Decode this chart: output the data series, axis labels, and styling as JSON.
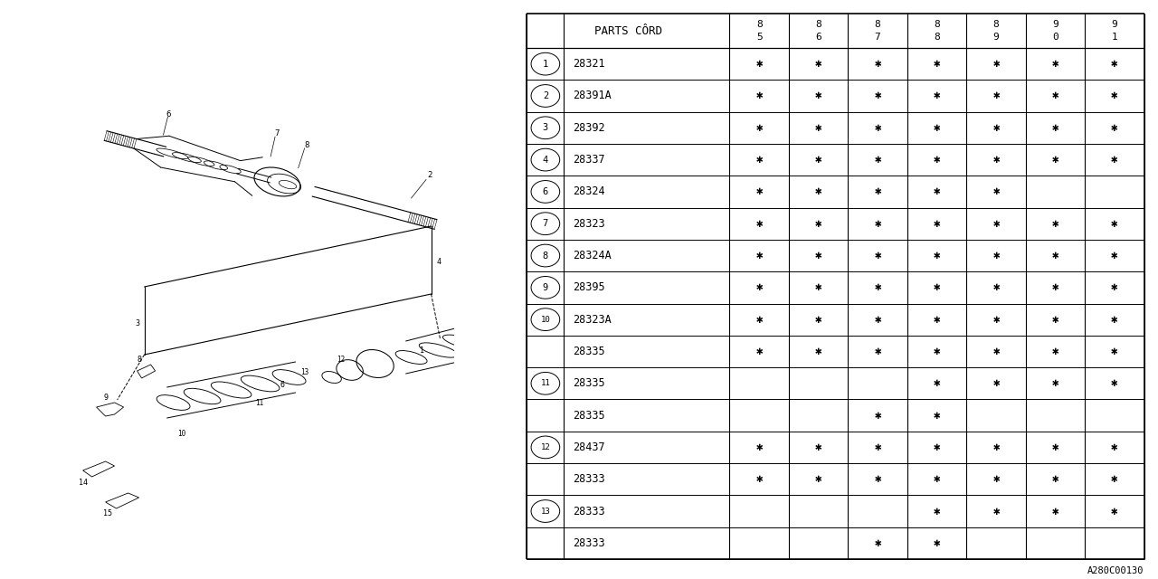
{
  "bg_color": "#ffffff",
  "rows": [
    {
      "ref": "1",
      "code": "28321",
      "marks": [
        1,
        1,
        1,
        1,
        1,
        1,
        1
      ]
    },
    {
      "ref": "2",
      "code": "28391A",
      "marks": [
        1,
        1,
        1,
        1,
        1,
        1,
        1
      ]
    },
    {
      "ref": "3",
      "code": "28392",
      "marks": [
        1,
        1,
        1,
        1,
        1,
        1,
        1
      ]
    },
    {
      "ref": "4",
      "code": "28337",
      "marks": [
        1,
        1,
        1,
        1,
        1,
        1,
        1
      ]
    },
    {
      "ref": "6",
      "code": "28324",
      "marks": [
        1,
        1,
        1,
        1,
        1,
        0,
        0
      ]
    },
    {
      "ref": "7",
      "code": "28323",
      "marks": [
        1,
        1,
        1,
        1,
        1,
        1,
        1
      ]
    },
    {
      "ref": "8",
      "code": "28324A",
      "marks": [
        1,
        1,
        1,
        1,
        1,
        1,
        1
      ]
    },
    {
      "ref": "9",
      "code": "28395",
      "marks": [
        1,
        1,
        1,
        1,
        1,
        1,
        1
      ]
    },
    {
      "ref": "10",
      "code": "28323A",
      "marks": [
        1,
        1,
        1,
        1,
        1,
        1,
        1
      ]
    },
    {
      "ref": "",
      "code": "28335",
      "marks": [
        1,
        1,
        1,
        1,
        1,
        1,
        1
      ]
    },
    {
      "ref": "11",
      "code": "28335",
      "marks": [
        0,
        0,
        0,
        1,
        1,
        1,
        1
      ]
    },
    {
      "ref": "",
      "code": "28335",
      "marks": [
        0,
        0,
        1,
        1,
        0,
        0,
        0
      ]
    },
    {
      "ref": "12",
      "code": "28437",
      "marks": [
        1,
        1,
        1,
        1,
        1,
        1,
        1
      ]
    },
    {
      "ref": "",
      "code": "28333",
      "marks": [
        1,
        1,
        1,
        1,
        1,
        1,
        1
      ]
    },
    {
      "ref": "13",
      "code": "28333",
      "marks": [
        0,
        0,
        0,
        1,
        1,
        1,
        1
      ]
    },
    {
      "ref": "",
      "code": "28333",
      "marks": [
        0,
        0,
        1,
        1,
        0,
        0,
        0
      ]
    }
  ],
  "year_labels": [
    [
      "8",
      "5"
    ],
    [
      "8",
      "6"
    ],
    [
      "8",
      "7"
    ],
    [
      "8",
      "8"
    ],
    [
      "8",
      "9"
    ],
    [
      "9",
      "0"
    ],
    [
      "9",
      "1"
    ]
  ],
  "watermark": "A280C00130",
  "header_text": "PARTS CÔRD"
}
